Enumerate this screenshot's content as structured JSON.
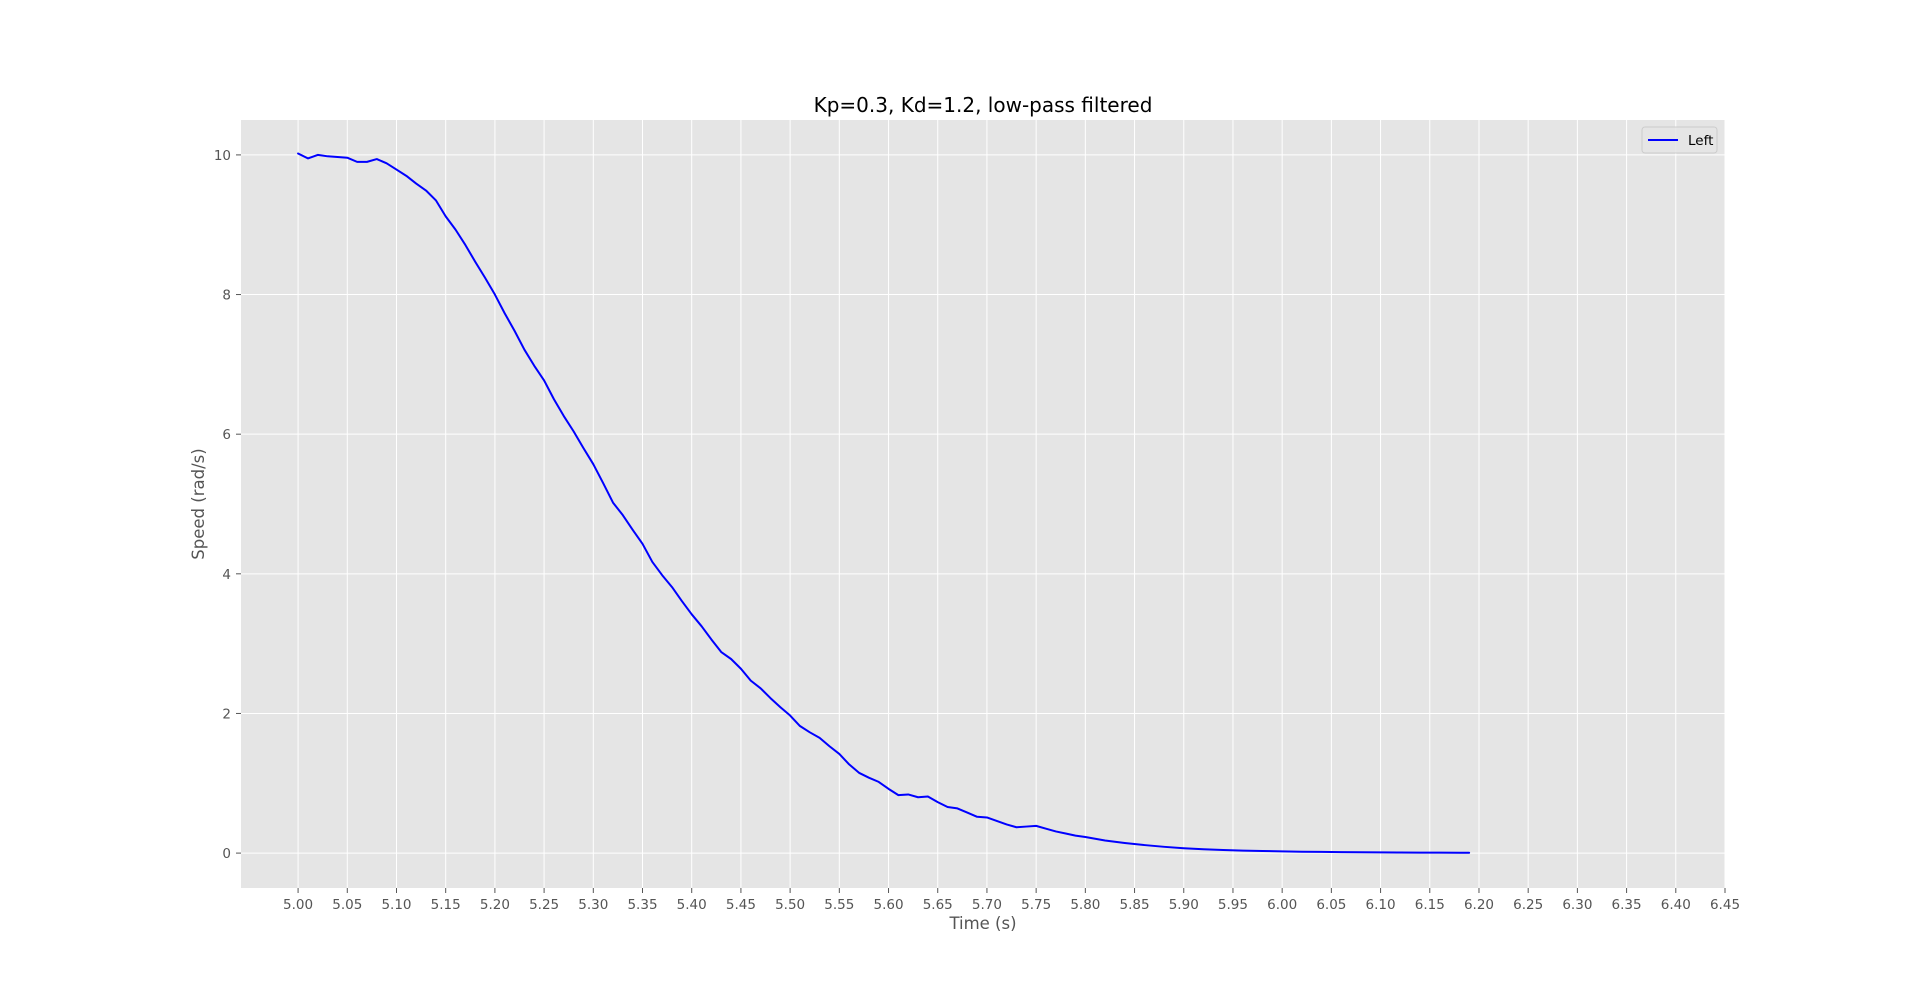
{
  "chart_data": {
    "type": "line",
    "title": "Kp=0.3, Kd=1.2, low-pass filtered",
    "xlabel": "Time (s)",
    "ylabel": "Speed (rad/s)",
    "xlim": [
      4.942,
      6.45
    ],
    "ylim": [
      -0.5,
      10.5
    ],
    "xticks": [
      "5.00",
      "5.05",
      "5.10",
      "5.15",
      "5.20",
      "5.25",
      "5.30",
      "5.35",
      "5.40",
      "5.45",
      "5.50",
      "5.55",
      "5.60",
      "5.65",
      "5.70",
      "5.75",
      "5.80",
      "5.85",
      "5.90",
      "5.95",
      "6.00",
      "6.05",
      "6.10",
      "6.15",
      "6.20",
      "6.25",
      "6.30",
      "6.35",
      "6.40",
      "6.45"
    ],
    "yticks": [
      "0",
      "2",
      "4",
      "6",
      "8",
      "10"
    ],
    "grid": true,
    "legend_position": "upper right",
    "colors": {
      "plot_background": "#e5e5e5",
      "grid": "#ffffff",
      "line": "#0000ff"
    },
    "series": [
      {
        "name": "Left",
        "color": "#0000ff",
        "x": [
          5.0,
          5.01,
          5.02,
          5.03,
          5.04,
          5.05,
          5.06,
          5.07,
          5.08,
          5.09,
          5.1,
          5.11,
          5.12,
          5.13,
          5.14,
          5.15,
          5.16,
          5.17,
          5.18,
          5.19,
          5.2,
          5.21,
          5.22,
          5.23,
          5.24,
          5.25,
          5.26,
          5.27,
          5.28,
          5.29,
          5.3,
          5.31,
          5.32,
          5.33,
          5.34,
          5.35,
          5.36,
          5.37,
          5.38,
          5.39,
          5.4,
          5.41,
          5.42,
          5.43,
          5.44,
          5.45,
          5.46,
          5.47,
          5.48,
          5.49,
          5.5,
          5.51,
          5.52,
          5.53,
          5.54,
          5.55,
          5.56,
          5.57,
          5.58,
          5.59,
          5.6,
          5.61,
          5.62,
          5.63,
          5.64,
          5.65,
          5.66,
          5.67,
          5.68,
          5.69,
          5.7,
          5.71,
          5.72,
          5.73,
          5.74,
          5.75,
          5.76,
          5.77,
          5.78,
          5.79,
          5.8,
          5.82,
          5.84,
          5.86,
          5.88,
          5.9,
          5.92,
          5.94,
          5.96,
          5.98,
          6.0,
          6.02,
          6.04,
          6.06,
          6.08,
          6.1,
          6.12,
          6.14,
          6.16,
          6.18,
          6.19
        ],
        "y": [
          10.02,
          9.95,
          10.0,
          9.98,
          9.97,
          9.96,
          9.9,
          9.9,
          9.94,
          9.88,
          9.79,
          9.7,
          9.59,
          9.49,
          9.35,
          9.12,
          8.93,
          8.71,
          8.47,
          8.24,
          8.0,
          7.73,
          7.48,
          7.21,
          6.98,
          6.77,
          6.5,
          6.26,
          6.04,
          5.8,
          5.57,
          5.3,
          5.02,
          4.84,
          4.63,
          4.43,
          4.17,
          3.98,
          3.81,
          3.61,
          3.42,
          3.25,
          3.06,
          2.88,
          2.78,
          2.64,
          2.47,
          2.36,
          2.22,
          2.09,
          1.97,
          1.82,
          1.73,
          1.65,
          1.53,
          1.42,
          1.27,
          1.15,
          1.08,
          1.02,
          0.92,
          0.83,
          0.84,
          0.8,
          0.81,
          0.73,
          0.66,
          0.64,
          0.58,
          0.52,
          0.51,
          0.46,
          0.41,
          0.37,
          0.38,
          0.39,
          0.35,
          0.31,
          0.28,
          0.25,
          0.23,
          0.18,
          0.145,
          0.115,
          0.09,
          0.07,
          0.055,
          0.045,
          0.036,
          0.03,
          0.025,
          0.02,
          0.017,
          0.014,
          0.012,
          0.01,
          0.008,
          0.007,
          0.006,
          0.005,
          0.005
        ]
      }
    ]
  }
}
